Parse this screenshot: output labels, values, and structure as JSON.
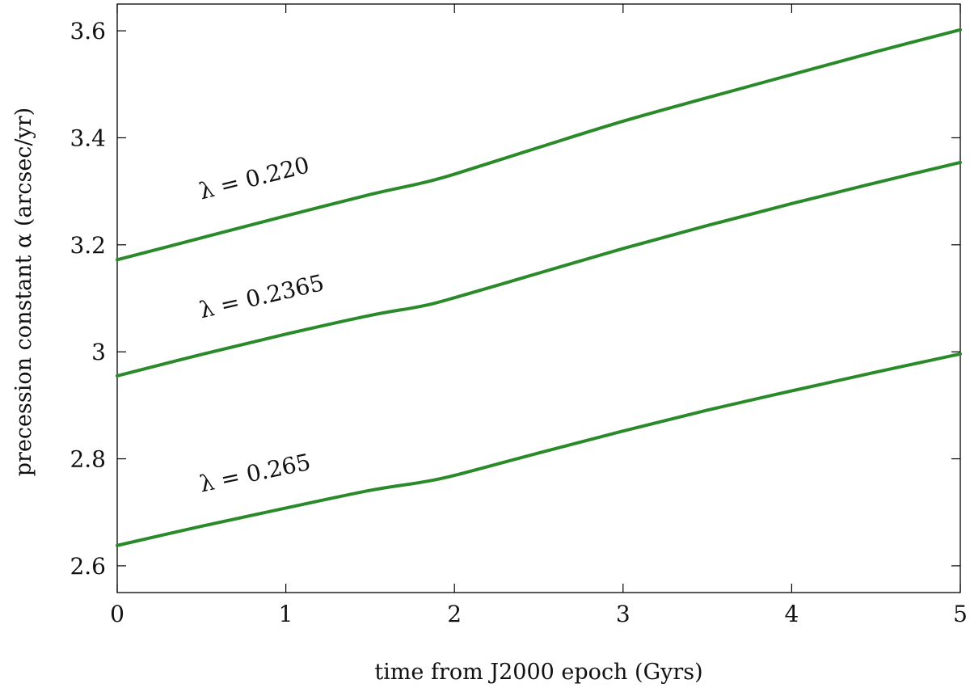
{
  "chart_data": {
    "type": "line",
    "title": "",
    "xlabel": "time from J2000 epoch (Gyrs)",
    "ylabel": "precession constant α (arcsec/yr)",
    "xlim": [
      0,
      5
    ],
    "ylim": [
      2.55,
      3.65
    ],
    "x_ticks": [
      0,
      1,
      2,
      3,
      4,
      5
    ],
    "x_tick_labels": [
      "0",
      "1",
      "2",
      "3",
      "4",
      "5"
    ],
    "y_ticks": [
      2.6,
      2.8,
      3.0,
      3.2,
      3.4,
      3.6
    ],
    "y_tick_labels": [
      "2.6",
      "2.8",
      "3",
      "3.2",
      "3.4",
      "3.6"
    ],
    "grid": false,
    "line_color": "#2a8a2a",
    "series": [
      {
        "label": "λ = 0.220",
        "label_at": {
          "x": 0.5,
          "y": 3.285
        },
        "x": [
          0,
          0.5,
          1.0,
          1.5,
          1.8,
          2.0,
          2.5,
          3.0,
          3.5,
          4.0,
          4.5,
          5.0
        ],
        "y": [
          3.172,
          3.213,
          3.254,
          3.294,
          3.315,
          3.332,
          3.382,
          3.431,
          3.475,
          3.518,
          3.561,
          3.602
        ]
      },
      {
        "label": "λ = 0.2365",
        "label_at": {
          "x": 0.5,
          "y": 3.063
        },
        "x": [
          0,
          0.5,
          1.0,
          1.5,
          1.8,
          2.0,
          2.5,
          3.0,
          3.5,
          4.0,
          4.5,
          5.0
        ],
        "y": [
          2.955,
          2.995,
          3.033,
          3.068,
          3.085,
          3.101,
          3.147,
          3.193,
          3.236,
          3.277,
          3.316,
          3.354
        ]
      },
      {
        "label": "λ = 0.265",
        "label_at": {
          "x": 0.5,
          "y": 2.738
        },
        "x": [
          0,
          0.5,
          1.0,
          1.5,
          1.8,
          2.0,
          2.5,
          3.0,
          3.5,
          4.0,
          4.5,
          5.0
        ],
        "y": [
          2.638,
          2.674,
          2.708,
          2.741,
          2.756,
          2.769,
          2.811,
          2.852,
          2.891,
          2.927,
          2.962,
          2.996
        ]
      }
    ]
  }
}
